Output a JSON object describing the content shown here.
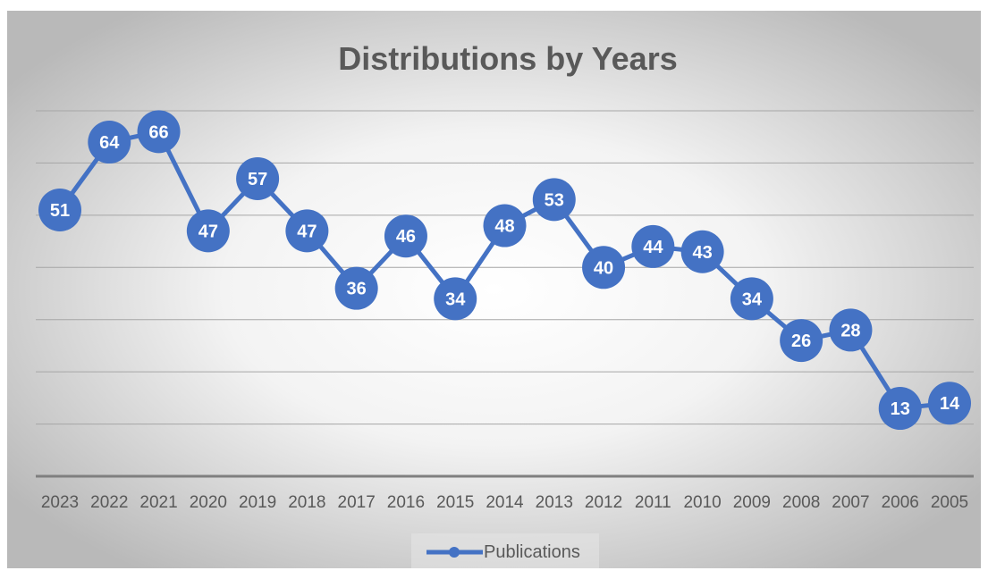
{
  "chart_data": {
    "type": "line",
    "title": "Distributions by Years",
    "xlabel": "",
    "ylabel": "",
    "categories": [
      "2023",
      "2022",
      "2021",
      "2020",
      "2019",
      "2018",
      "2017",
      "2016",
      "2015",
      "2014",
      "2013",
      "2012",
      "2011",
      "2010",
      "2009",
      "2008",
      "2007",
      "2006",
      "2005"
    ],
    "series": [
      {
        "name": "Publications",
        "values": [
          51,
          64,
          66,
          47,
          57,
          47,
          36,
          46,
          34,
          48,
          53,
          40,
          44,
          43,
          34,
          26,
          28,
          13,
          14
        ]
      }
    ],
    "ylim": [
      0,
      70
    ],
    "grid": true,
    "y_axis_labels_shown": false,
    "data_labels": true,
    "legend": "bottom",
    "colors": {
      "series": "#4472C4",
      "label_text": "#ffffff",
      "title": "#595959",
      "tick": "#595959",
      "gridline": "#a6a6a6",
      "axis": "#7f7f7f",
      "background_center": "#ffffff",
      "background_edge": "#bfbfbf"
    }
  }
}
